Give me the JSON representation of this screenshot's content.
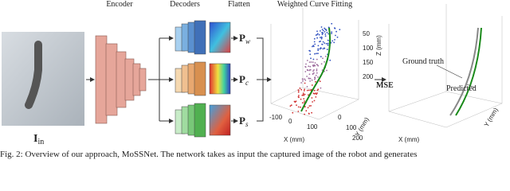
{
  "figure": {
    "stages": {
      "encoder": "Encoder",
      "decoders": "Decoders",
      "flatten": "Flatten",
      "fitting": "Weighted Curve Fitting"
    },
    "input": {
      "symbol": "I",
      "subscript": "in"
    },
    "outputs": [
      {
        "symbol": "P",
        "subscript": "w"
      },
      {
        "symbol": "P",
        "subscript": "c"
      },
      {
        "symbol": "P",
        "subscript": "s"
      }
    ],
    "fit_plot": {
      "z_ticks": [
        "50",
        "100",
        "150",
        "200"
      ],
      "z_label": "Z (mm)",
      "x_ticks": [
        "-100",
        "0",
        "100"
      ],
      "x_label": "X (mm)",
      "y_ticks": [
        "0",
        "100",
        "200"
      ],
      "y_label": "Y (mm)"
    },
    "loss": "MSE",
    "result_plot": {
      "ground_truth": "Ground truth",
      "predicted": "Predicted",
      "x_label": "X (mm)",
      "y_label": "Y (mm)"
    },
    "caption": "Fig. 2: Overview of our approach, MoSSNet. The network takes as input the captured image of the robot and generates"
  }
}
